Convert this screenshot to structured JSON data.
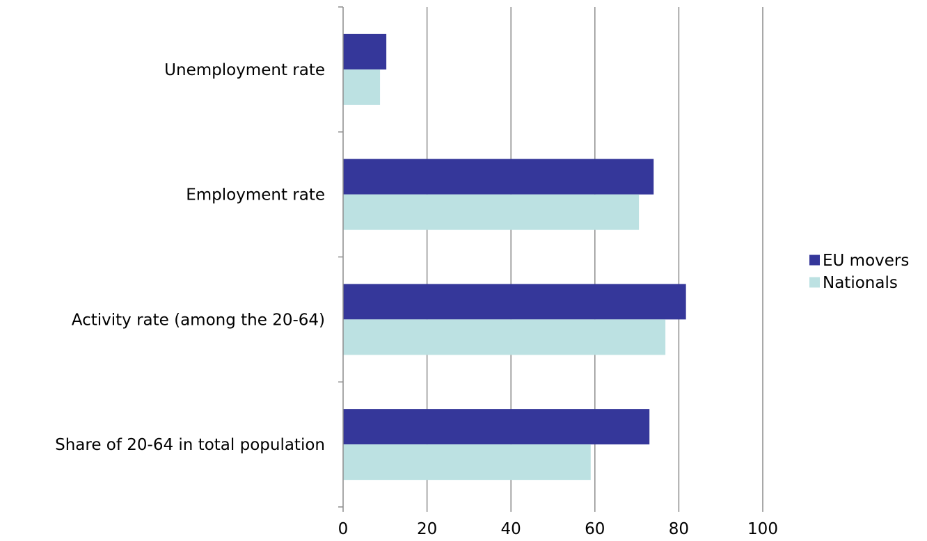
{
  "chart_data": {
    "type": "bar",
    "orientation": "horizontal",
    "categories": [
      "Unemployment rate",
      "Employment rate",
      "Activity rate (among the 20-64)",
      "Share of 20-64 in total population"
    ],
    "series": [
      {
        "name": "EU movers",
        "color": "#35379a",
        "values": [
          10.3,
          74.0,
          81.7,
          73.0
        ]
      },
      {
        "name": "Nationals",
        "color": "#bce1e2",
        "values": [
          8.8,
          70.5,
          76.8,
          59.0
        ]
      }
    ],
    "xlim": [
      0,
      100
    ],
    "xticks": [
      "0",
      "20",
      "40",
      "60",
      "80",
      "100"
    ],
    "grid": true,
    "legend_position": "right"
  }
}
